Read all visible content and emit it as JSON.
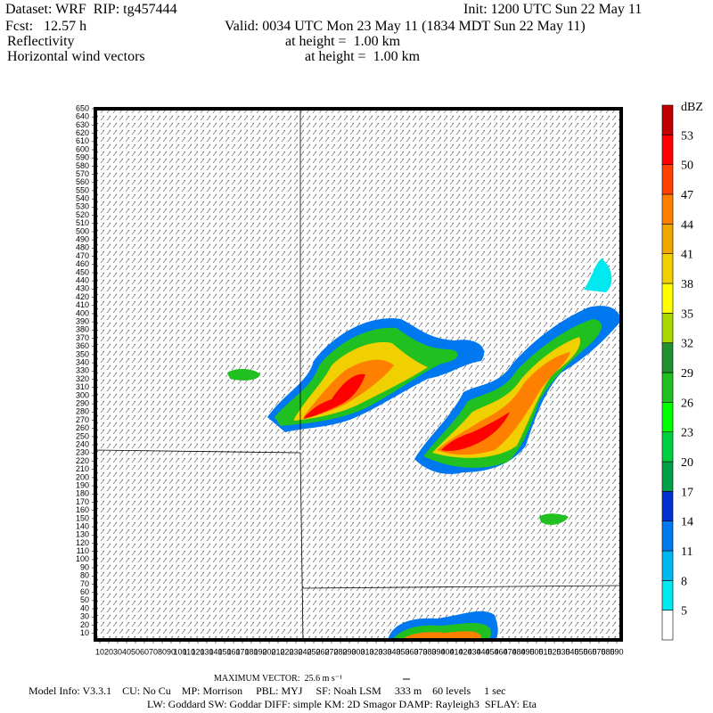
{
  "header": {
    "dataset": "Dataset: WRF  RIP: tg457444",
    "init": "Init: 1200 UTC Sun 22 May 11",
    "fcst": "Fcst:   12.57 h",
    "valid": "Valid: 0034 UTC Mon 23 May 11 (1834 MDT Sun 22 May 11)",
    "field1": "Reflectivity",
    "field1_level": "at height =  1.00 km",
    "field2": "Horizontal wind vectors",
    "field2_level": "at height =  1.00 km"
  },
  "chart_data": {
    "type": "map",
    "xlim": [
      5,
      595
    ],
    "ylim": [
      2,
      650
    ],
    "xticks": [
      10,
      20,
      30,
      40,
      50,
      60,
      70,
      80,
      90,
      100,
      110,
      120,
      130,
      140,
      150,
      160,
      170,
      180,
      190,
      200,
      210,
      220,
      230,
      240,
      250,
      260,
      270,
      280,
      290,
      300,
      310,
      320,
      330,
      340,
      350,
      360,
      370,
      380,
      390,
      400,
      410,
      420,
      430,
      440,
      450,
      460,
      470,
      480,
      490,
      500,
      510,
      520,
      530,
      540,
      550,
      560,
      570,
      580,
      590
    ],
    "yticks": [
      10,
      20,
      30,
      40,
      50,
      60,
      70,
      80,
      90,
      100,
      110,
      120,
      130,
      140,
      150,
      160,
      170,
      180,
      190,
      200,
      210,
      220,
      230,
      240,
      250,
      260,
      270,
      280,
      290,
      300,
      310,
      320,
      330,
      340,
      350,
      360,
      370,
      380,
      390,
      400,
      410,
      420,
      430,
      440,
      450,
      460,
      470,
      480,
      490,
      500,
      510,
      520,
      530,
      540,
      550,
      560,
      570,
      580,
      590,
      600,
      610,
      620,
      630,
      640,
      650
    ],
    "colorbar": {
      "unit": "dBZ",
      "levels": [
        5,
        8,
        11,
        14,
        17,
        20,
        23,
        26,
        29,
        32,
        35,
        38,
        41,
        44,
        47,
        50,
        53
      ],
      "colors": [
        "#ffffff",
        "#00e8f0",
        "#00b8f0",
        "#0078f0",
        "#0030d0",
        "#00a048",
        "#00d040",
        "#00ff00",
        "#20c020",
        "#209030",
        "#a8d800",
        "#ffff00",
        "#f0d000",
        "#f0a800",
        "#ff8000",
        "#ff4000",
        "#ff0000",
        "#c00000"
      ]
    }
  },
  "footer": {
    "max_vector": "MAXIMUM VECTOR:  25.6 m s⁻¹",
    "model_info": "Model Info: V3.3.1    CU: No Cu    MP: Morrison     PBL: MYJ     SF: Noah LSM     333 m    60 levels     1 sec",
    "physics": "LW: Goddard SW: Goddar DIFF: simple KM: 2D Smagor DAMP: Rayleigh3  SFLAY: Eta"
  }
}
